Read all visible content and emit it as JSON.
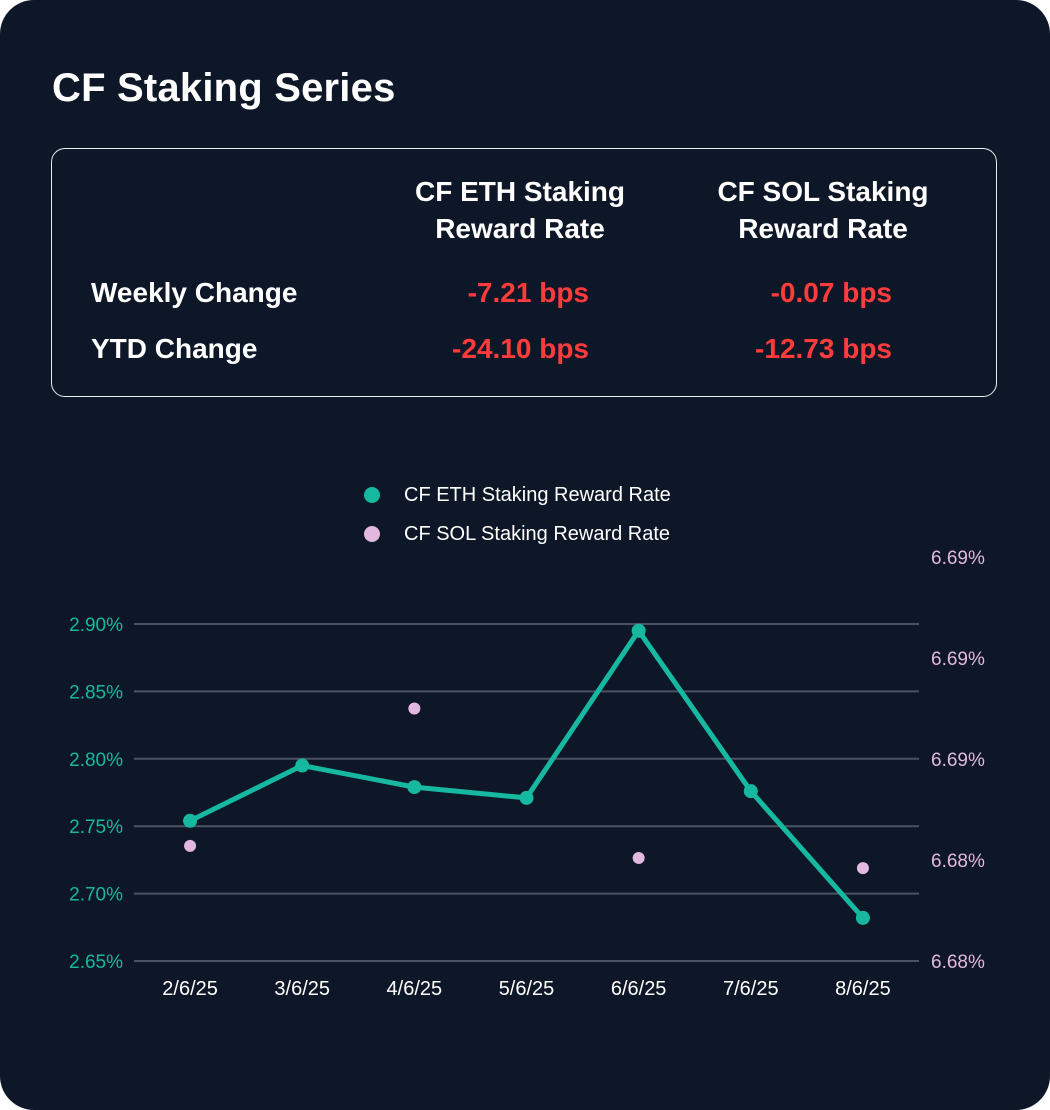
{
  "title": "CF Staking Series",
  "colors": {
    "eth": "#16b9a0",
    "sol": "#e2b8e0",
    "negative": "#ff3b3b",
    "background": "#0e1727",
    "grid": "#4a5361"
  },
  "summary": {
    "columns": [
      "CF ETH Staking\nReward Rate",
      "CF SOL Staking\nReward Rate"
    ],
    "rows": [
      {
        "label": "Weekly Change",
        "values": [
          "-7.21 bps",
          "-0.07 bps"
        ]
      },
      {
        "label": "YTD Change",
        "values": [
          "-24.10 bps",
          "-12.73 bps"
        ]
      }
    ]
  },
  "chart_data": {
    "type": "line",
    "categories": [
      "2/6/25",
      "3/6/25",
      "4/6/25",
      "5/6/25",
      "6/6/25",
      "7/6/25",
      "8/6/25"
    ],
    "series": [
      {
        "name": "CF ETH Staking Reward Rate",
        "axis": "left",
        "style": "line+markers",
        "color": "#16b9a0",
        "values": [
          2.754,
          2.795,
          2.779,
          2.771,
          2.895,
          2.776,
          2.682
        ]
      },
      {
        "name": "CF SOL Staking Reward Rate",
        "axis": "right",
        "style": "markers",
        "color": "#e2b8e0",
        "values": [
          6.6837,
          null,
          6.6905,
          null,
          6.6831,
          null,
          6.6826
        ]
      }
    ],
    "y_left": {
      "ylim": [
        2.65,
        2.9
      ],
      "ticks": [
        "2.65%",
        "2.70%",
        "2.75%",
        "2.80%",
        "2.85%",
        "2.90%"
      ],
      "color": "#16b9a0"
    },
    "y_right": {
      "ylim": [
        6.678,
        6.698
      ],
      "ticks": [
        "6.68%",
        "6.68%",
        "6.69%",
        "6.69%",
        "6.69%"
      ],
      "color": "#e2b8e0"
    },
    "grid": true,
    "legend": "top-center"
  }
}
